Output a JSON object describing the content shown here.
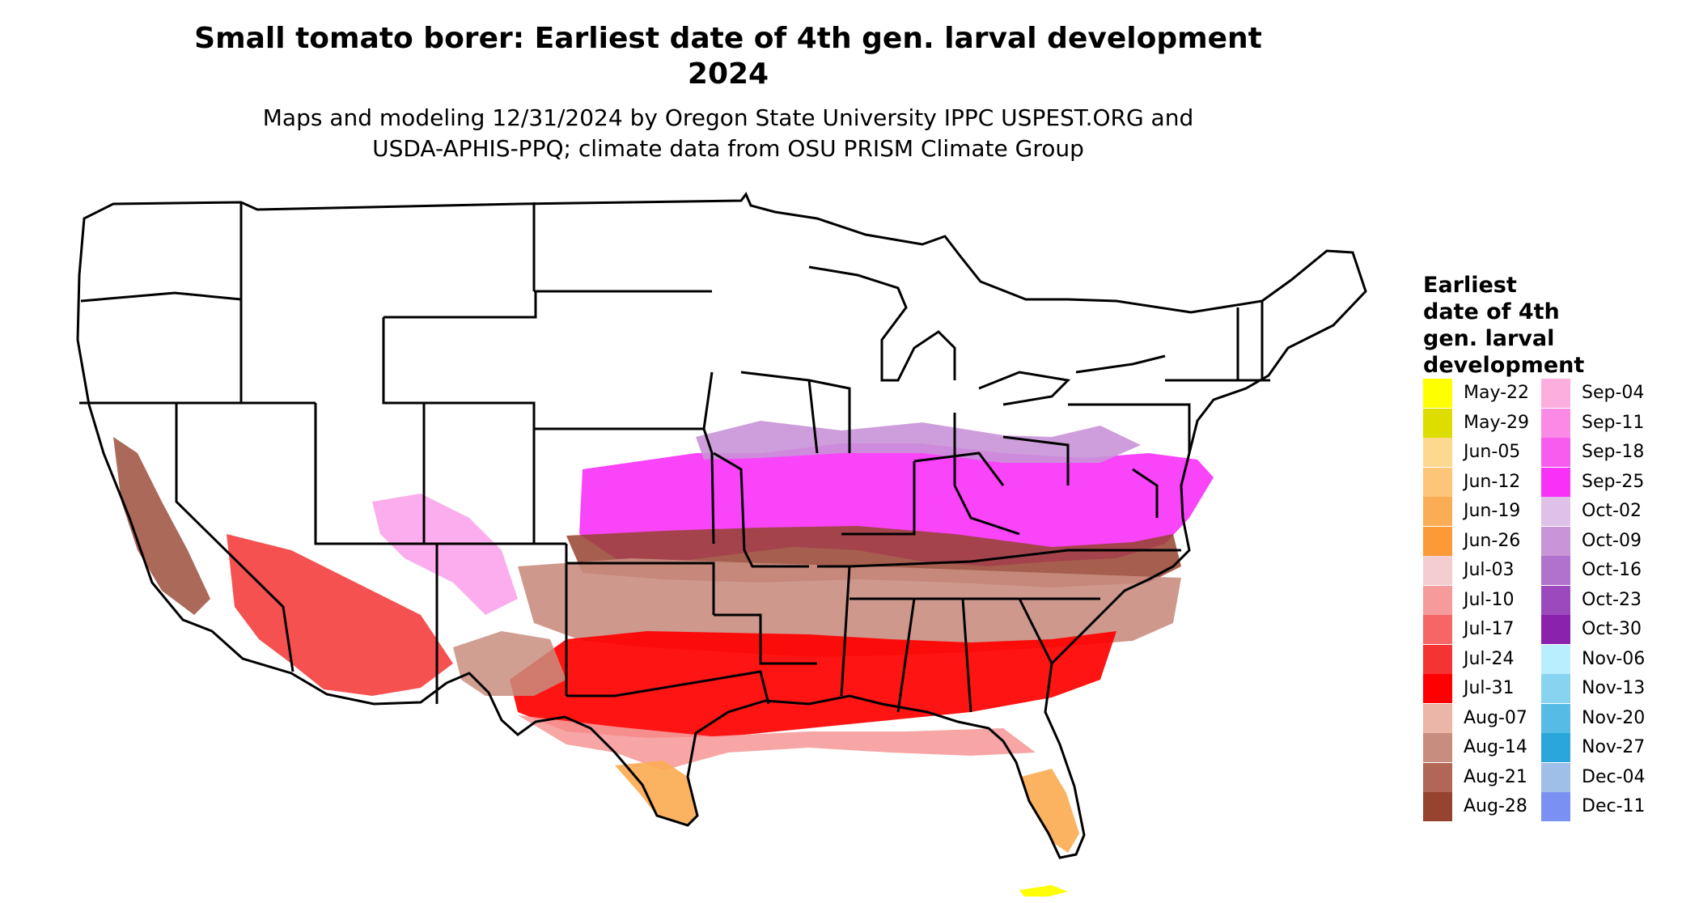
{
  "header": {
    "title_line1": "Small tomato borer: Earliest date of 4th gen. larval development",
    "title_line2": "2024",
    "subtitle_line1": "Maps and modeling 12/31/2024 by Oregon State University IPPC USPEST.ORG and",
    "subtitle_line2": "USDA-APHIS-PPQ; climate data from OSU PRISM Climate Group"
  },
  "legend": {
    "title_line1": "Earliest",
    "title_line2": "date of 4th",
    "title_line3": "gen. larval",
    "title_line4": "development",
    "col1": [
      {
        "label": "May-22",
        "color": "#ffff00"
      },
      {
        "label": "May-29",
        "color": "#dddd00"
      },
      {
        "label": "Jun-05",
        "color": "#fdd98f"
      },
      {
        "label": "Jun-12",
        "color": "#fcc578"
      },
      {
        "label": "Jun-19",
        "color": "#fbad55"
      },
      {
        "label": "Jun-26",
        "color": "#fb9a37"
      },
      {
        "label": "Jul-03",
        "color": "#f4cdd0"
      },
      {
        "label": "Jul-10",
        "color": "#f69b9b"
      },
      {
        "label": "Jul-17",
        "color": "#f66666"
      },
      {
        "label": "Jul-24",
        "color": "#f53333"
      },
      {
        "label": "Jul-31",
        "color": "#ff0000"
      },
      {
        "label": "Aug-07",
        "color": "#ebb5a8"
      },
      {
        "label": "Aug-14",
        "color": "#c98d7f"
      },
      {
        "label": "Aug-21",
        "color": "#b26655"
      },
      {
        "label": "Aug-28",
        "color": "#96432f"
      }
    ],
    "col2": [
      {
        "label": "Sep-04",
        "color": "#fcaede"
      },
      {
        "label": "Sep-11",
        "color": "#fa8ae6"
      },
      {
        "label": "Sep-18",
        "color": "#f85cef"
      },
      {
        "label": "Sep-25",
        "color": "#f830f8"
      },
      {
        "label": "Oct-02",
        "color": "#dfc0e8"
      },
      {
        "label": "Oct-09",
        "color": "#c994d8"
      },
      {
        "label": "Oct-16",
        "color": "#b072cc"
      },
      {
        "label": "Oct-23",
        "color": "#9b49bd"
      },
      {
        "label": "Oct-30",
        "color": "#8a22ad"
      },
      {
        "label": "Nov-06",
        "color": "#b8eefe"
      },
      {
        "label": "Nov-13",
        "color": "#88d4f0"
      },
      {
        "label": "Nov-20",
        "color": "#56bce6"
      },
      {
        "label": "Nov-27",
        "color": "#2aa6dc"
      },
      {
        "label": "Dec-04",
        "color": "#a0bfe8"
      },
      {
        "label": "Dec-11",
        "color": "#7a90f2"
      }
    ]
  }
}
